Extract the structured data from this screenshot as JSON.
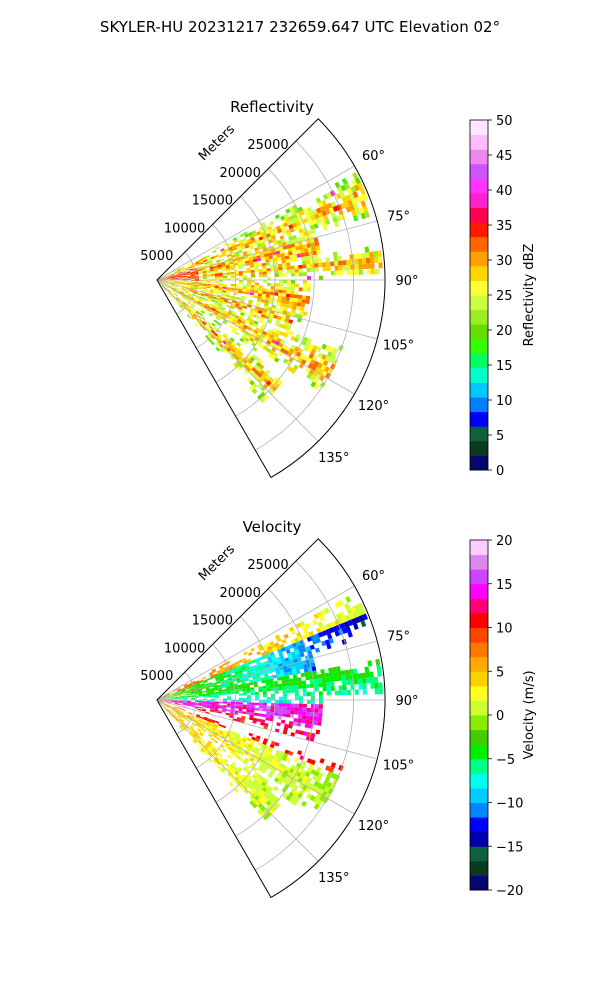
{
  "figure_title": "SKYLER-HU  20231217  232659.647 UTC Elevation 02°",
  "chart_data": [
    {
      "type": "heatmap",
      "projection": "polar-sector",
      "title": "Reflectivity",
      "radial_axis_label": "Meters",
      "radial_ticks": [
        "5000",
        "10000",
        "15000",
        "20000",
        "25000"
      ],
      "radial_values": [
        5000,
        10000,
        15000,
        20000,
        25000
      ],
      "rmax": 29000,
      "azimuth_range_deg": [
        45,
        150
      ],
      "azimuth_ticks": [
        "60°",
        "75°",
        "90°",
        "105°",
        "120°",
        "135°"
      ],
      "azimuth_values": [
        60,
        75,
        90,
        105,
        120,
        135
      ],
      "colorbar": {
        "label": "Reflectivity dBZ",
        "range": [
          0,
          50
        ],
        "ticks": [
          "0",
          "5",
          "10",
          "15",
          "20",
          "25",
          "30",
          "35",
          "40",
          "45",
          "50"
        ],
        "tick_values": [
          0,
          5,
          10,
          15,
          20,
          25,
          30,
          35,
          40,
          45,
          50
        ]
      }
    },
    {
      "type": "heatmap",
      "projection": "polar-sector",
      "title": "Velocity",
      "radial_axis_label": "Meters",
      "radial_ticks": [
        "5000",
        "10000",
        "15000",
        "20000",
        "25000"
      ],
      "radial_values": [
        5000,
        10000,
        15000,
        20000,
        25000
      ],
      "rmax": 29000,
      "azimuth_range_deg": [
        45,
        150
      ],
      "azimuth_ticks": [
        "60°",
        "75°",
        "90°",
        "105°",
        "120°",
        "135°"
      ],
      "azimuth_values": [
        60,
        75,
        90,
        105,
        120,
        135
      ],
      "colorbar": {
        "label": "Velocity (m/s)",
        "range": [
          -20,
          20
        ],
        "ticks": [
          "−20",
          "−15",
          "−10",
          "−5",
          "0",
          "5",
          "10",
          "15",
          "20"
        ],
        "tick_values": [
          -20,
          -15,
          -10,
          -5,
          0,
          5,
          10,
          15,
          20
        ]
      }
    }
  ],
  "colors": {
    "reflectivity_scale": [
      "#06066f",
      "#0a3a1e",
      "#0f6040",
      "#0000ff",
      "#0080ff",
      "#00c8ff",
      "#00ffcc",
      "#00ff66",
      "#33ff00",
      "#66dd00",
      "#99ee22",
      "#ccff44",
      "#ffff33",
      "#ffd400",
      "#ffa000",
      "#ff6600",
      "#ff1a00",
      "#ff0055",
      "#ff22cc",
      "#ff33ff",
      "#cc55ff",
      "#ee88ee",
      "#ffbbff",
      "#ffe6ff"
    ],
    "velocity_scale": [
      "#06066f",
      "#0a3a1e",
      "#0f6040",
      "#0000aa",
      "#0000ff",
      "#0088ff",
      "#00ccff",
      "#00ffee",
      "#00ff88",
      "#00ee00",
      "#44cc00",
      "#88ee00",
      "#ccff33",
      "#ffff22",
      "#ffd000",
      "#ffaa00",
      "#ff7700",
      "#ff4400",
      "#ff0000",
      "#ff0077",
      "#ff00ff",
      "#cc44ff",
      "#dd88ee",
      "#ffccff"
    ]
  }
}
